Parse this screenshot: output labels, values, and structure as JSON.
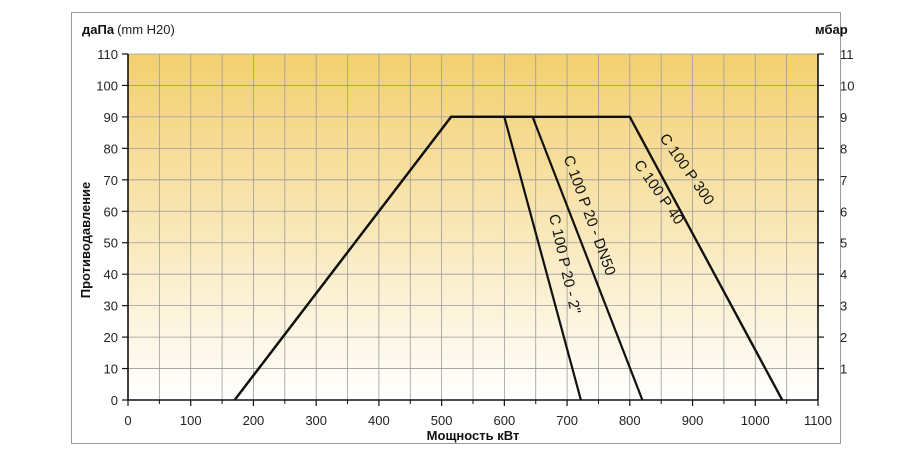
{
  "chart_data": {
    "type": "line",
    "title": "",
    "xlabel": "Мощность кВт",
    "ylabel": "Противодавление",
    "y_unit_left_bold": "даПа",
    "y_unit_left_normal": "(mm H20)",
    "y_unit_right": "мбар",
    "xlim": [
      0,
      1100
    ],
    "ylim": [
      0,
      110
    ],
    "y2lim": [
      0,
      11
    ],
    "x_ticks": [
      "0",
      "100",
      "200",
      "300",
      "400",
      "500",
      "600",
      "700",
      "800",
      "900",
      "1000",
      "1100"
    ],
    "y_ticks": [
      "0",
      "10",
      "20",
      "30",
      "40",
      "50",
      "60",
      "70",
      "80",
      "90",
      "100",
      "110"
    ],
    "y2_ticks": [
      "1",
      "2",
      "3",
      "4",
      "5",
      "6",
      "7",
      "8",
      "9",
      "10",
      "11"
    ],
    "grid": true,
    "series": [
      {
        "name": "C 100 P 20 - 2\"",
        "points": [
          [
            170,
            0
          ],
          [
            515,
            90
          ],
          [
            600,
            90
          ],
          [
            722,
            0
          ]
        ]
      },
      {
        "name": "C 100 P 20 - DN50",
        "points": [
          [
            170,
            0
          ],
          [
            515,
            90
          ],
          [
            645,
            90
          ],
          [
            820,
            0
          ]
        ]
      },
      {
        "name": "C 100 P 40",
        "points": [
          [
            170,
            0
          ],
          [
            515,
            90
          ],
          [
            800,
            90
          ],
          [
            1043,
            0
          ]
        ]
      },
      {
        "name": "C 100 P 300",
        "points": [
          [
            170,
            0
          ],
          [
            515,
            90
          ],
          [
            800,
            90
          ],
          [
            1043,
            0
          ]
        ]
      }
    ]
  },
  "colors": {
    "band_top": "#f3cf6e",
    "band_bottom": "#ffffff",
    "grid": "#9b9b9b",
    "line": "#111111"
  }
}
